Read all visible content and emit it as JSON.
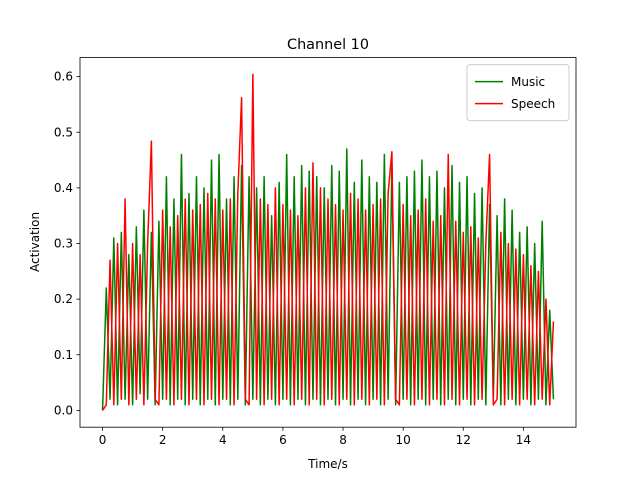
{
  "chart_data": {
    "type": "line",
    "title": "Channel 10",
    "xlabel": "Time/s",
    "ylabel": "Activation",
    "x": [
      0,
      0.125,
      0.25,
      0.375,
      0.5,
      0.625,
      0.75,
      0.875,
      1,
      1.125,
      1.25,
      1.375,
      1.5,
      1.625,
      1.75,
      1.875,
      2,
      2.125,
      2.25,
      2.375,
      2.5,
      2.625,
      2.75,
      2.875,
      3,
      3.125,
      3.25,
      3.375,
      3.5,
      3.625,
      3.75,
      3.875,
      4,
      4.125,
      4.25,
      4.375,
      4.5,
      4.625,
      4.75,
      4.875,
      5,
      5.125,
      5.25,
      5.375,
      5.5,
      5.625,
      5.75,
      5.875,
      6,
      6.125,
      6.25,
      6.375,
      6.5,
      6.625,
      6.75,
      6.875,
      7,
      7.125,
      7.25,
      7.375,
      7.5,
      7.625,
      7.75,
      7.875,
      8,
      8.125,
      8.25,
      8.375,
      8.5,
      8.625,
      8.75,
      8.875,
      9,
      9.125,
      9.25,
      9.375,
      9.5,
      9.625,
      9.75,
      9.875,
      10,
      10.125,
      10.25,
      10.375,
      10.5,
      10.625,
      10.75,
      10.875,
      11,
      11.125,
      11.25,
      11.375,
      11.5,
      11.625,
      11.75,
      11.875,
      12,
      12.125,
      12.25,
      12.375,
      12.5,
      12.625,
      12.75,
      12.875,
      13,
      13.125,
      13.25,
      13.375,
      13.5,
      13.625,
      13.75,
      13.875,
      14,
      14.125,
      14.25,
      14.375,
      14.5,
      14.625,
      14.75,
      14.875,
      15
    ],
    "series": [
      {
        "name": "Music",
        "color": "#008000",
        "values": [
          0.0,
          0.22,
          0.02,
          0.31,
          0.01,
          0.32,
          0.02,
          0.28,
          0.01,
          0.33,
          0.03,
          0.36,
          0.02,
          0.32,
          0.01,
          0.34,
          0.02,
          0.42,
          0.01,
          0.38,
          0.02,
          0.46,
          0.01,
          0.39,
          0.02,
          0.42,
          0.01,
          0.4,
          0.02,
          0.45,
          0.01,
          0.46,
          0.02,
          0.38,
          0.01,
          0.42,
          0.02,
          0.44,
          0.01,
          0.42,
          0.02,
          0.4,
          0.01,
          0.42,
          0.02,
          0.35,
          0.01,
          0.41,
          0.02,
          0.46,
          0.01,
          0.42,
          0.02,
          0.44,
          0.01,
          0.43,
          0.02,
          0.42,
          0.01,
          0.4,
          0.02,
          0.44,
          0.01,
          0.43,
          0.02,
          0.47,
          0.01,
          0.41,
          0.02,
          0.45,
          0.01,
          0.42,
          0.02,
          0.41,
          0.01,
          0.46,
          0.02,
          0.44,
          0.01,
          0.41,
          0.02,
          0.42,
          0.01,
          0.43,
          0.02,
          0.45,
          0.01,
          0.42,
          0.02,
          0.43,
          0.01,
          0.4,
          0.02,
          0.44,
          0.01,
          0.41,
          0.02,
          0.42,
          0.01,
          0.39,
          0.02,
          0.4,
          0.01,
          0.37,
          0.02,
          0.35,
          0.01,
          0.38,
          0.02,
          0.36,
          0.01,
          0.32,
          0.02,
          0.33,
          0.01,
          0.3,
          0.02,
          0.34,
          0.01,
          0.18,
          0.02
        ]
      },
      {
        "name": "Speech",
        "color": "#ff0000",
        "values": [
          0.0,
          0.01,
          0.27,
          0.01,
          0.3,
          0.02,
          0.38,
          0.01,
          0.3,
          0.02,
          0.28,
          0.01,
          0.3,
          0.484,
          0.02,
          0.01,
          0.36,
          0.02,
          0.33,
          0.01,
          0.35,
          0.02,
          0.38,
          0.01,
          0.36,
          0.02,
          0.37,
          0.01,
          0.39,
          0.02,
          0.38,
          0.01,
          0.36,
          0.02,
          0.38,
          0.01,
          0.39,
          0.562,
          0.02,
          0.01,
          0.604,
          0.02,
          0.38,
          0.01,
          0.37,
          0.02,
          0.4,
          0.01,
          0.37,
          0.02,
          0.36,
          0.01,
          0.35,
          0.02,
          0.4,
          0.01,
          0.445,
          0.02,
          0.4,
          0.01,
          0.38,
          0.02,
          0.37,
          0.01,
          0.36,
          0.02,
          0.39,
          0.01,
          0.38,
          0.02,
          0.36,
          0.01,
          0.37,
          0.02,
          0.38,
          0.01,
          0.39,
          0.465,
          0.02,
          0.01,
          0.37,
          0.02,
          0.35,
          0.01,
          0.36,
          0.02,
          0.38,
          0.01,
          0.34,
          0.02,
          0.35,
          0.01,
          0.46,
          0.02,
          0.34,
          0.01,
          0.32,
          0.02,
          0.33,
          0.01,
          0.31,
          0.02,
          0.3,
          0.46,
          0.01,
          0.02,
          0.32,
          0.01,
          0.3,
          0.02,
          0.29,
          0.01,
          0.28,
          0.02,
          0.26,
          0.01,
          0.25,
          0.02,
          0.2,
          0.01,
          0.16
        ]
      }
    ],
    "xlim": [
      -0.75,
      15.75
    ],
    "ylim": [
      -0.0302,
      0.6342
    ],
    "xticks": [
      0,
      2,
      4,
      6,
      8,
      10,
      12,
      14
    ],
    "yticks": [
      {
        "value": 0,
        "label": "0.0"
      },
      0.1,
      0.2,
      0.3,
      0.4,
      0.5,
      0.6
    ],
    "legend": "upper right"
  }
}
